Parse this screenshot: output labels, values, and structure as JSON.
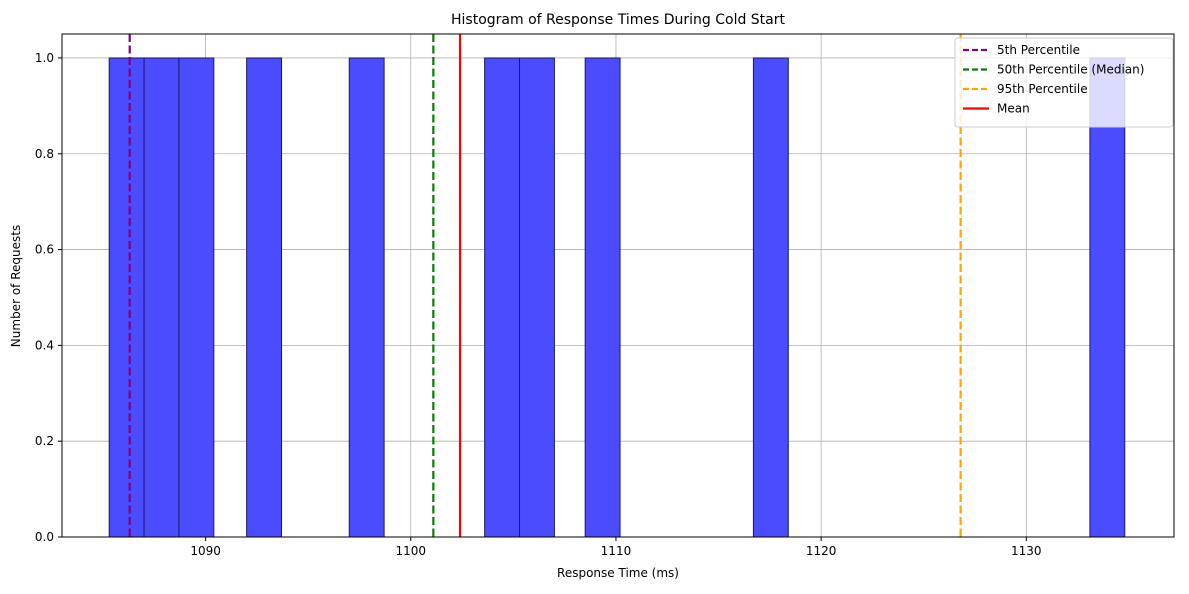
{
  "chart_data": {
    "type": "bar",
    "title": "Histogram of Response Times During Cold Start",
    "xlabel": "Response Time (ms)",
    "ylabel": "Number of Requests",
    "xlim": [
      1083.0,
      1137.2
    ],
    "ylim": [
      0,
      1.05
    ],
    "x_ticks": [
      1090,
      1100,
      1110,
      1120,
      1130
    ],
    "y_ticks": [
      0.0,
      0.2,
      0.4,
      0.6,
      0.8,
      1.0
    ],
    "x_tick_labels": [
      "1090",
      "1100",
      "1110",
      "1120",
      "1130"
    ],
    "y_tick_labels": [
      "0.0",
      "0.2",
      "0.4",
      "0.6",
      "0.8",
      "1.0"
    ],
    "grid": true,
    "legend_position": "top-right",
    "bar_color": "#4b4bff",
    "bar_edge_color": "#1a1a66",
    "bins": [
      {
        "start": 1085.3,
        "end": 1087.0,
        "count": 1
      },
      {
        "start": 1087.0,
        "end": 1088.7,
        "count": 1
      },
      {
        "start": 1088.7,
        "end": 1090.4,
        "count": 1
      },
      {
        "start": 1092.0,
        "end": 1093.7,
        "count": 1
      },
      {
        "start": 1097.0,
        "end": 1098.7,
        "count": 1
      },
      {
        "start": 1103.6,
        "end": 1105.3,
        "count": 1
      },
      {
        "start": 1105.3,
        "end": 1107.0,
        "count": 1
      },
      {
        "start": 1108.5,
        "end": 1110.2,
        "count": 1
      },
      {
        "start": 1116.7,
        "end": 1118.4,
        "count": 1
      },
      {
        "start": 1133.1,
        "end": 1134.8,
        "count": 1
      }
    ],
    "lines": [
      {
        "name": "5th Percentile",
        "value": 1086.3,
        "color": "#800080",
        "style": "dashed"
      },
      {
        "name": "50th Percentile (Median)",
        "value": 1101.1,
        "color": "#008000",
        "style": "dashed"
      },
      {
        "name": "95th Percentile",
        "value": 1126.8,
        "color": "#ffa500",
        "style": "dashed"
      },
      {
        "name": "Mean",
        "value": 1102.4,
        "color": "#ff0000",
        "style": "solid"
      }
    ]
  }
}
